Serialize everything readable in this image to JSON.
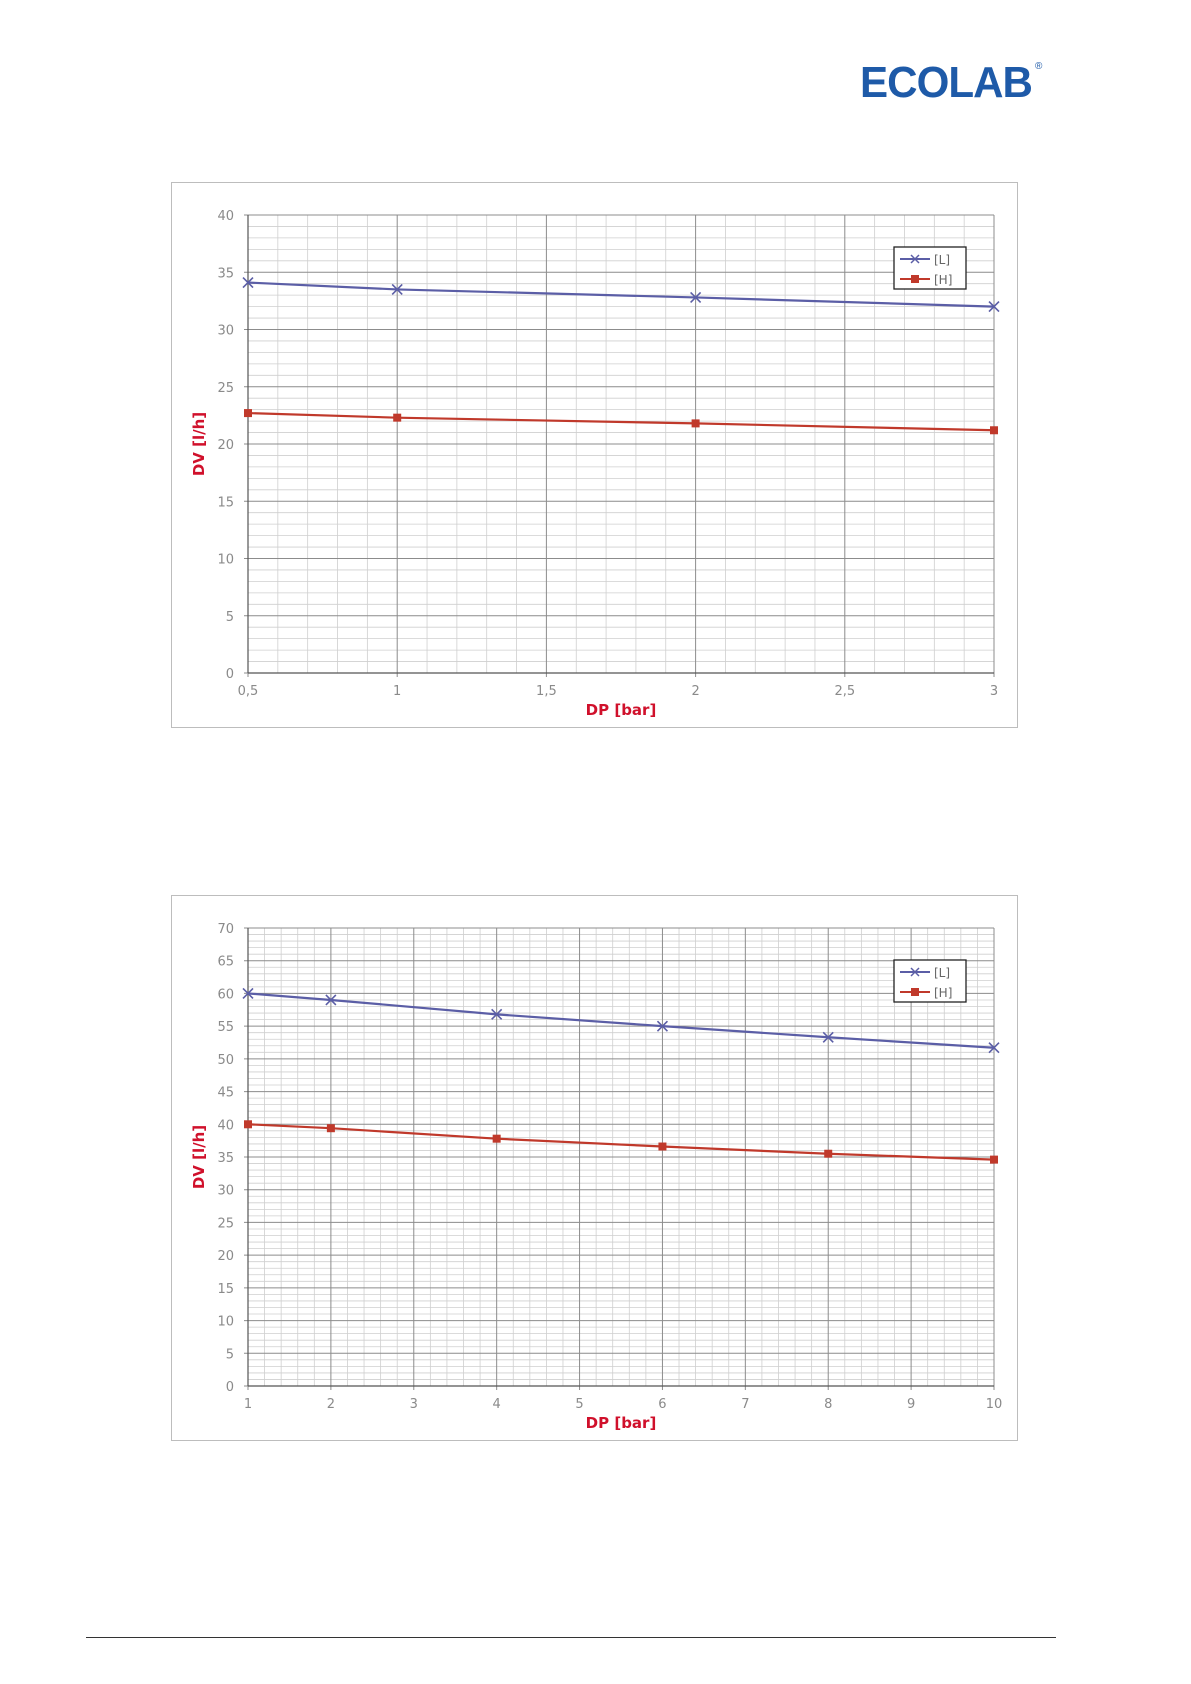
{
  "logo": {
    "text": "ECOLAB",
    "registered": "®",
    "color": "#1e5aa8"
  },
  "colors": {
    "series_L": "#5b5ea6",
    "series_H": "#c0392b",
    "axis_title": "#d0102b",
    "tick_label": "#8a8a8a"
  },
  "chart_data": [
    {
      "type": "line",
      "xlabel": "DP [bar]",
      "ylabel": "DV [l/h]",
      "x_ticks": [
        "0,5",
        "1",
        "1,5",
        "2",
        "2,5",
        "3"
      ],
      "xlim": [
        0.5,
        3
      ],
      "ylim": [
        0,
        40
      ],
      "y_ticks": [
        "0",
        "5",
        "10",
        "15",
        "20",
        "25",
        "30",
        "35",
        "40"
      ],
      "grid": true,
      "legend": "top-right",
      "series": [
        {
          "name": "[L]",
          "marker": "x",
          "color": "#5b5ea6",
          "x": [
            0.5,
            1,
            2,
            3
          ],
          "y": [
            34.1,
            33.5,
            32.8,
            32.0
          ]
        },
        {
          "name": "[H]",
          "marker": "square",
          "color": "#c0392b",
          "x": [
            0.5,
            1,
            2,
            3
          ],
          "y": [
            22.7,
            22.3,
            21.8,
            21.2
          ]
        }
      ]
    },
    {
      "type": "line",
      "xlabel": "DP [bar]",
      "ylabel": "DV [l/h]",
      "x_ticks": [
        "1",
        "2",
        "3",
        "4",
        "5",
        "6",
        "7",
        "8",
        "9",
        "10"
      ],
      "xlim": [
        1,
        10
      ],
      "ylim": [
        0,
        70
      ],
      "y_ticks": [
        "0",
        "5",
        "10",
        "15",
        "20",
        "25",
        "30",
        "35",
        "40",
        "45",
        "50",
        "55",
        "60",
        "65",
        "70"
      ],
      "grid": true,
      "legend": "top-right",
      "series": [
        {
          "name": "[L]",
          "marker": "x",
          "color": "#5b5ea6",
          "x": [
            1,
            2,
            4,
            6,
            8,
            10
          ],
          "y": [
            60.0,
            59.0,
            56.8,
            55.0,
            53.3,
            51.7
          ]
        },
        {
          "name": "[H]",
          "marker": "square",
          "color": "#c0392b",
          "x": [
            1,
            2,
            4,
            6,
            8,
            10
          ],
          "y": [
            40.0,
            39.4,
            37.8,
            36.6,
            35.5,
            34.6
          ]
        }
      ]
    }
  ]
}
